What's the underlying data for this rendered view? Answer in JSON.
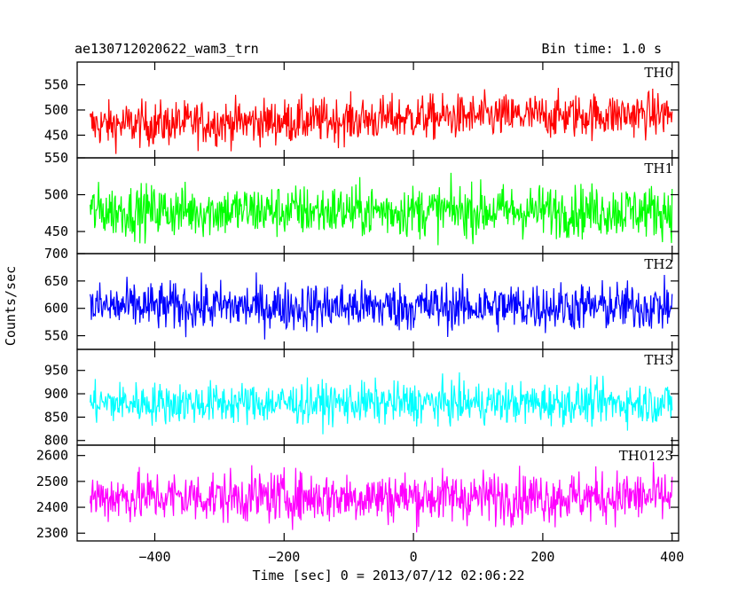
{
  "header": {
    "title": "ae130712020622_wam3_trn",
    "bin_time": "Bin time: 1.0 s"
  },
  "chart_data": {
    "type": "line",
    "xlabel": "Time [sec] 0 = 2013/07/12 02:06:22",
    "ylabel": "Counts/sec",
    "xlim": [
      -520,
      410
    ],
    "x_ticks": [
      -400,
      -200,
      0,
      200,
      400
    ],
    "x_tick_labels": [
      "−400",
      "−200",
      "0",
      "200",
      "400"
    ],
    "x_data_range": [
      -500,
      400
    ],
    "bin_seconds": 1.0,
    "panels": [
      {
        "name": "TH0",
        "color": "#ff0000",
        "ylim": [
          405,
          595
        ],
        "y_ticks": [
          450,
          500,
          550
        ],
        "noise_amp": 40,
        "trend": [
          {
            "x": -500,
            "y": 470
          },
          {
            "x": -100,
            "y": 480
          },
          {
            "x": 0,
            "y": 485
          },
          {
            "x": 200,
            "y": 488
          },
          {
            "x": 400,
            "y": 492
          }
        ]
      },
      {
        "name": "TH1",
        "color": "#00ff00",
        "ylim": [
          420,
          550
        ],
        "y_ticks": [
          450,
          500,
          550
        ],
        "noise_amp": 32,
        "trend": [
          {
            "x": -500,
            "y": 478
          },
          {
            "x": 400,
            "y": 478
          }
        ]
      },
      {
        "name": "TH2",
        "color": "#0000ff",
        "ylim": [
          525,
          700
        ],
        "y_ticks": [
          550,
          600,
          650,
          700
        ],
        "noise_amp": 40,
        "trend": [
          {
            "x": -500,
            "y": 603
          },
          {
            "x": 400,
            "y": 603
          }
        ]
      },
      {
        "name": "TH3",
        "color": "#00ffff",
        "ylim": [
          790,
          995
        ],
        "y_ticks": [
          800,
          850,
          900,
          950
        ],
        "noise_amp": 40,
        "trend": [
          {
            "x": -500,
            "y": 880
          },
          {
            "x": 400,
            "y": 880
          }
        ]
      },
      {
        "name": "TH0123",
        "color": "#ff00ff",
        "ylim": [
          2270,
          2640
        ],
        "y_ticks": [
          2300,
          2400,
          2500,
          2600
        ],
        "noise_amp": 90,
        "trend": [
          {
            "x": -500,
            "y": 2440
          },
          {
            "x": 400,
            "y": 2440
          }
        ]
      }
    ]
  }
}
